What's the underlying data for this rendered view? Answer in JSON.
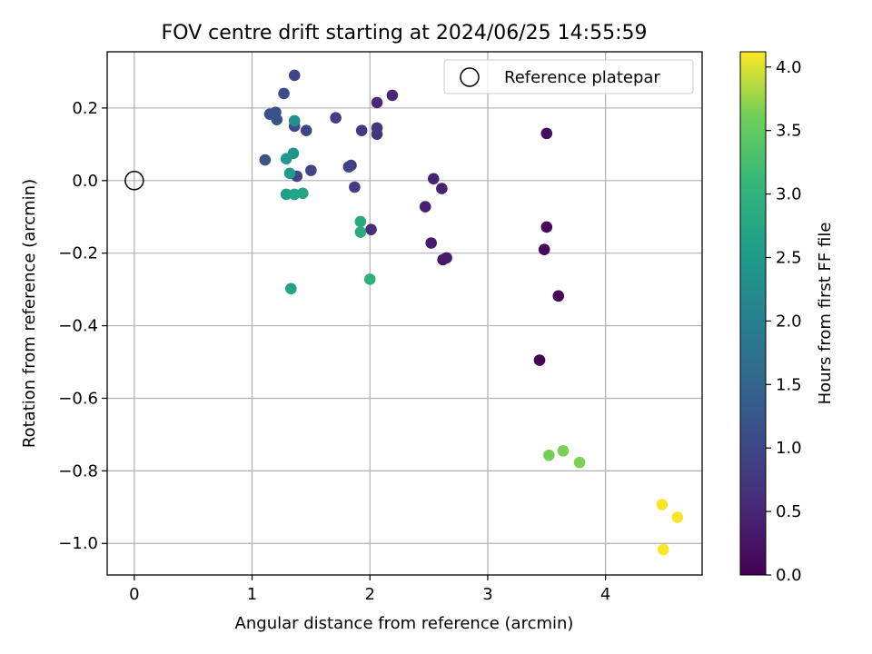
{
  "chart_data": {
    "type": "scatter",
    "title": "FOV centre drift starting at 2024/06/25 14:55:59",
    "xlabel": "Angular distance from reference (arcmin)",
    "ylabel": "Rotation from reference (arcmin)",
    "xlim": [
      -0.23,
      4.82
    ],
    "ylim": [
      -1.087,
      0.355
    ],
    "xticks": [
      0,
      1,
      2,
      3,
      4
    ],
    "xtick_labels": [
      "0",
      "1",
      "2",
      "3",
      "4"
    ],
    "yticks": [
      0.2,
      0.0,
      -0.2,
      -0.4,
      -0.6,
      -0.8,
      -1.0
    ],
    "ytick_labels": [
      "0.2",
      "0.0",
      "−0.2",
      "−0.4",
      "−0.6",
      "−0.8",
      "−1.0"
    ],
    "grid": true,
    "legend": {
      "placement": "top-right",
      "entries": [
        {
          "label": "Reference platepar",
          "marker": "open-circle"
        }
      ]
    },
    "reference_point": {
      "x": 0.0,
      "y": 0.0,
      "label": "Reference platepar"
    },
    "colorbar": {
      "label": "Hours from first FF file",
      "colormap": "viridis",
      "range": [
        0.0,
        4.12
      ],
      "ticks": [
        0.0,
        0.5,
        1.0,
        1.5,
        2.0,
        2.5,
        3.0,
        3.5,
        4.0
      ],
      "tick_labels": [
        "0.0",
        "0.5",
        "1.0",
        "1.5",
        "2.0",
        "2.5",
        "3.0",
        "3.5",
        "4.0"
      ]
    },
    "points": [
      {
        "x": 3.44,
        "y": -0.495,
        "c": 0.02
      },
      {
        "x": 3.6,
        "y": -0.318,
        "c": 0.05
      },
      {
        "x": 3.48,
        "y": -0.19,
        "c": 0.08
      },
      {
        "x": 3.5,
        "y": -0.128,
        "c": 0.12
      },
      {
        "x": 3.5,
        "y": 0.13,
        "c": 0.16
      },
      {
        "x": 2.62,
        "y": -0.218,
        "c": 0.3
      },
      {
        "x": 2.65,
        "y": -0.213,
        "c": 0.33
      },
      {
        "x": 2.52,
        "y": -0.172,
        "c": 0.36
      },
      {
        "x": 2.47,
        "y": -0.072,
        "c": 0.4
      },
      {
        "x": 2.61,
        "y": -0.022,
        "c": 0.42
      },
      {
        "x": 2.54,
        "y": 0.005,
        "c": 0.45
      },
      {
        "x": 2.19,
        "y": 0.235,
        "c": 0.5
      },
      {
        "x": 2.06,
        "y": 0.215,
        "c": 0.53
      },
      {
        "x": 2.01,
        "y": -0.135,
        "c": 0.6
      },
      {
        "x": 2.06,
        "y": 0.128,
        "c": 0.7
      },
      {
        "x": 2.06,
        "y": 0.145,
        "c": 0.73
      },
      {
        "x": 1.93,
        "y": 0.138,
        "c": 0.78
      },
      {
        "x": 1.87,
        "y": -0.018,
        "c": 0.82
      },
      {
        "x": 1.71,
        "y": 0.173,
        "c": 0.85
      },
      {
        "x": 1.84,
        "y": 0.042,
        "c": 0.88
      },
      {
        "x": 1.82,
        "y": 0.038,
        "c": 0.9
      },
      {
        "x": 1.5,
        "y": 0.028,
        "c": 0.93
      },
      {
        "x": 1.38,
        "y": 0.012,
        "c": 0.96
      },
      {
        "x": 1.46,
        "y": 0.138,
        "c": 0.98
      },
      {
        "x": 1.36,
        "y": 0.29,
        "c": 1.0
      },
      {
        "x": 1.36,
        "y": 0.15,
        "c": 1.05
      },
      {
        "x": 1.27,
        "y": 0.24,
        "c": 1.08
      },
      {
        "x": 1.2,
        "y": 0.188,
        "c": 1.12
      },
      {
        "x": 1.15,
        "y": 0.183,
        "c": 1.14
      },
      {
        "x": 1.21,
        "y": 0.168,
        "c": 1.16
      },
      {
        "x": 1.11,
        "y": 0.057,
        "c": 1.2
      },
      {
        "x": 1.36,
        "y": 0.165,
        "c": 2.3
      },
      {
        "x": 1.35,
        "y": 0.075,
        "c": 2.4
      },
      {
        "x": 1.29,
        "y": 0.06,
        "c": 2.5
      },
      {
        "x": 1.32,
        "y": 0.02,
        "c": 2.55
      },
      {
        "x": 1.29,
        "y": -0.038,
        "c": 2.6
      },
      {
        "x": 1.36,
        "y": -0.038,
        "c": 2.65
      },
      {
        "x": 1.43,
        "y": -0.035,
        "c": 2.7
      },
      {
        "x": 1.33,
        "y": -0.298,
        "c": 2.7
      },
      {
        "x": 1.92,
        "y": -0.113,
        "c": 2.8
      },
      {
        "x": 1.92,
        "y": -0.142,
        "c": 2.85
      },
      {
        "x": 2.0,
        "y": -0.272,
        "c": 2.95
      },
      {
        "x": 3.52,
        "y": -0.757,
        "c": 3.62
      },
      {
        "x": 3.64,
        "y": -0.745,
        "c": 3.64
      },
      {
        "x": 3.78,
        "y": -0.777,
        "c": 3.66
      },
      {
        "x": 4.48,
        "y": -0.893,
        "c": 4.1
      },
      {
        "x": 4.61,
        "y": -0.928,
        "c": 4.1
      },
      {
        "x": 4.49,
        "y": -1.017,
        "c": 4.12
      }
    ]
  }
}
